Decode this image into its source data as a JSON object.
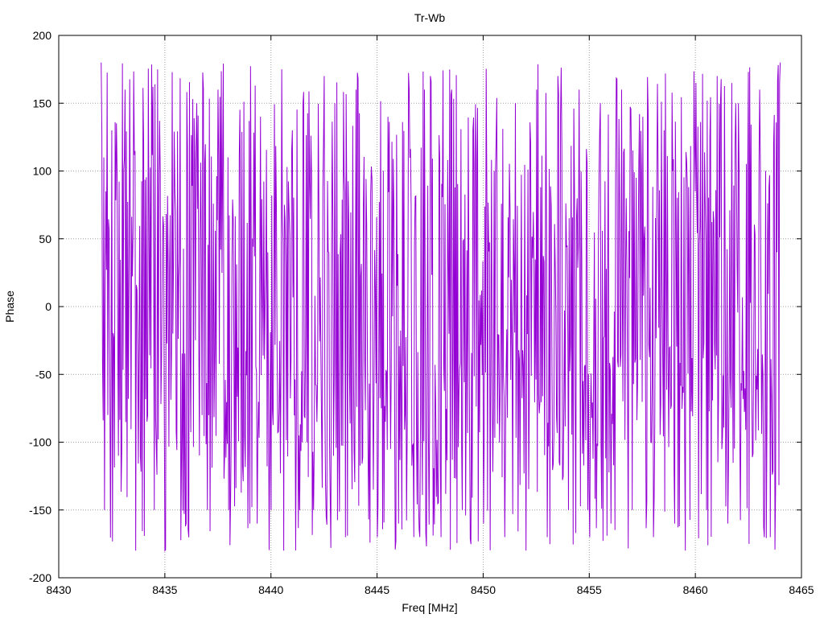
{
  "chart_data": {
    "type": "line",
    "title": "Tr-Wb",
    "xlabel": "Freq [MHz]",
    "ylabel": "Phase",
    "xlim": [
      8430,
      8465
    ],
    "ylim": [
      -200,
      200
    ],
    "x_ticks": [
      8430,
      8435,
      8440,
      8445,
      8450,
      8455,
      8460,
      8465
    ],
    "y_ticks": [
      -200,
      -150,
      -100,
      -50,
      0,
      50,
      100,
      150,
      200
    ],
    "grid": true,
    "legend": "none",
    "series": [
      {
        "color": "#9400d3",
        "x_range": [
          8432,
          8464
        ],
        "point_count": 1024,
        "sample_points": [
          [
            8432.0,
            180
          ],
          [
            8432.05,
            -40
          ],
          [
            8432.1,
            110
          ],
          [
            8432.15,
            -150
          ],
          [
            8432.2,
            85
          ],
          [
            8432.3,
            -80
          ],
          [
            8432.5,
            130
          ],
          [
            8432.8,
            -110
          ],
          [
            8433.1,
            160
          ],
          [
            8433.3,
            30
          ],
          [
            8433.6,
            -180
          ],
          [
            8434.0,
            120
          ],
          [
            8434.5,
            -150
          ],
          [
            8435.0,
            -180
          ],
          [
            8435.5,
            70
          ],
          [
            8436.0,
            -160
          ],
          [
            8436.5,
            150
          ],
          [
            8437.0,
            -150
          ],
          [
            8437.5,
            160
          ],
          [
            8438.0,
            -150
          ],
          [
            8438.5,
            110
          ],
          [
            8439.0,
            -160
          ],
          [
            8439.5,
            140
          ],
          [
            8440.0,
            -150
          ],
          [
            8440.5,
            175
          ],
          [
            8440.6,
            -180
          ],
          [
            8441.0,
            130
          ],
          [
            8441.5,
            150
          ],
          [
            8442.0,
            -150
          ],
          [
            8442.5,
            170
          ],
          [
            8442.8,
            -178
          ],
          [
            8443.0,
            150
          ],
          [
            8443.5,
            -170
          ],
          [
            8444.0,
            160
          ],
          [
            8444.5,
            60
          ],
          [
            8444.8,
            -135
          ],
          [
            8445.0,
            -170
          ],
          [
            8445.5,
            140
          ],
          [
            8446.0,
            -160
          ],
          [
            8446.5,
            160
          ],
          [
            8447.0,
            -170
          ],
          [
            8447.5,
            170
          ],
          [
            8448.0,
            -170
          ],
          [
            8448.5,
            160
          ],
          [
            8449.0,
            -150
          ],
          [
            8449.5,
            130
          ],
          [
            8450.0,
            -160
          ],
          [
            8450.5,
            100
          ],
          [
            8451.0,
            -170
          ],
          [
            8451.5,
            150
          ],
          [
            8452.0,
            -180
          ],
          [
            8452.5,
            160
          ],
          [
            8453.0,
            -170
          ],
          [
            8453.5,
            170
          ],
          [
            8454.0,
            -150
          ],
          [
            8454.5,
            160
          ],
          [
            8455.0,
            -170
          ],
          [
            8455.5,
            150
          ],
          [
            8456.0,
            -160
          ],
          [
            8456.5,
            160
          ],
          [
            8457.0,
            -150
          ],
          [
            8457.5,
            140
          ],
          [
            8458.0,
            -170
          ],
          [
            8458.5,
            130
          ],
          [
            8459.0,
            -160
          ],
          [
            8459.5,
            -180
          ],
          [
            8460.0,
            165
          ],
          [
            8460.5,
            -150
          ],
          [
            8461.0,
            170
          ],
          [
            8461.5,
            -160
          ],
          [
            8462.0,
            150
          ],
          [
            8462.5,
            -175
          ],
          [
            8463.0,
            160
          ],
          [
            8463.5,
            -170
          ],
          [
            8464.0,
            180
          ]
        ]
      }
    ]
  }
}
